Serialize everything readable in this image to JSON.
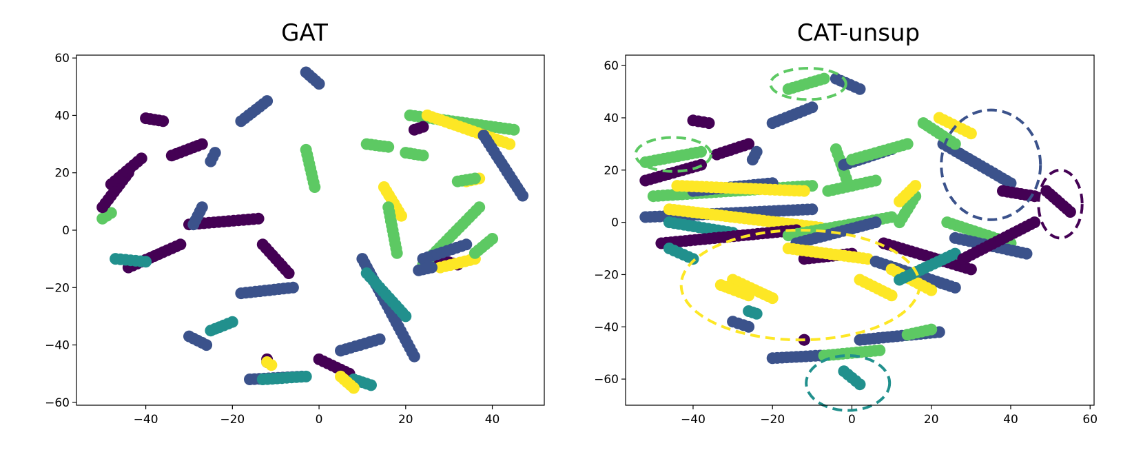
{
  "chart_data": [
    {
      "type": "scatter",
      "title": "GAT",
      "xlabel": "",
      "ylabel": "",
      "xlim": [
        -56,
        52
      ],
      "ylim": [
        -61,
        61
      ],
      "xticks": [
        -40,
        -20,
        0,
        20,
        40
      ],
      "yticks": [
        -60,
        -40,
        -20,
        0,
        20,
        40,
        60
      ],
      "grid": false,
      "legend": "none",
      "palette": [
        "#440154",
        "#3b528b",
        "#21908d",
        "#5dc963",
        "#fde725"
      ],
      "point_groups": [
        {
          "class": 0,
          "x": [
            -40,
            -36
          ],
          "y": [
            39,
            38
          ]
        },
        {
          "class": 3,
          "x": [
            -50,
            -48
          ],
          "y": [
            4,
            6
          ]
        },
        {
          "class": 0,
          "x": [
            -50,
            -44
          ],
          "y": [
            8,
            20
          ]
        },
        {
          "class": 0,
          "x": [
            -48,
            -41
          ],
          "y": [
            16,
            25
          ]
        },
        {
          "class": 0,
          "x": [
            -34,
            -27
          ],
          "y": [
            26,
            30
          ]
        },
        {
          "class": 1,
          "x": [
            -25,
            -24
          ],
          "y": [
            24,
            27
          ]
        },
        {
          "class": 1,
          "x": [
            -18,
            -12
          ],
          "y": [
            38,
            45
          ]
        },
        {
          "class": 1,
          "x": [
            -3,
            0
          ],
          "y": [
            55,
            51
          ]
        },
        {
          "class": 3,
          "x": [
            -3,
            -1
          ],
          "y": [
            28,
            15
          ]
        },
        {
          "class": 0,
          "x": [
            -44,
            -32
          ],
          "y": [
            -13,
            -5
          ]
        },
        {
          "class": 2,
          "x": [
            -47,
            -40
          ],
          "y": [
            -10,
            -11
          ]
        },
        {
          "class": 0,
          "x": [
            -30,
            -14
          ],
          "y": [
            2,
            4
          ]
        },
        {
          "class": 1,
          "x": [
            -29,
            -27
          ],
          "y": [
            2,
            8
          ]
        },
        {
          "class": 0,
          "x": [
            -13,
            -7
          ],
          "y": [
            -5,
            -15
          ]
        },
        {
          "class": 1,
          "x": [
            -18,
            -6
          ],
          "y": [
            -22,
            -20
          ]
        },
        {
          "class": 2,
          "x": [
            -25,
            -20
          ],
          "y": [
            -35,
            -32
          ]
        },
        {
          "class": 1,
          "x": [
            -30,
            -26
          ],
          "y": [
            -37,
            -40
          ]
        },
        {
          "class": 1,
          "x": [
            -16,
            -4
          ],
          "y": [
            -52,
            -51
          ]
        },
        {
          "class": 2,
          "x": [
            -13,
            -3
          ],
          "y": [
            -52,
            -51
          ]
        },
        {
          "class": 0,
          "x": [
            -12,
            -12
          ],
          "y": [
            -45,
            -46
          ]
        },
        {
          "class": 4,
          "x": [
            -12,
            -11
          ],
          "y": [
            -46,
            -47
          ]
        },
        {
          "class": 0,
          "x": [
            0,
            7
          ],
          "y": [
            -45,
            -50
          ]
        },
        {
          "class": 1,
          "x": [
            5,
            14
          ],
          "y": [
            -42,
            -38
          ]
        },
        {
          "class": 2,
          "x": [
            8,
            12
          ],
          "y": [
            -52,
            -54
          ]
        },
        {
          "class": 4,
          "x": [
            5,
            8
          ],
          "y": [
            -51,
            -55
          ]
        },
        {
          "class": 1,
          "x": [
            10,
            22
          ],
          "y": [
            -10,
            -44
          ]
        },
        {
          "class": 2,
          "x": [
            11,
            20
          ],
          "y": [
            -15,
            -30
          ]
        },
        {
          "class": 4,
          "x": [
            15,
            19
          ],
          "y": [
            15,
            5
          ]
        },
        {
          "class": 3,
          "x": [
            16,
            18
          ],
          "y": [
            8,
            -8
          ]
        },
        {
          "class": 3,
          "x": [
            11,
            16
          ],
          "y": [
            30,
            29
          ]
        },
        {
          "class": 3,
          "x": [
            20,
            24
          ],
          "y": [
            27,
            26
          ]
        },
        {
          "class": 3,
          "x": [
            21,
            45
          ],
          "y": [
            40,
            35
          ]
        },
        {
          "class": 4,
          "x": [
            25,
            44
          ],
          "y": [
            40,
            30
          ]
        },
        {
          "class": 1,
          "x": [
            38,
            47
          ],
          "y": [
            33,
            12
          ]
        },
        {
          "class": 4,
          "x": [
            34,
            37
          ],
          "y": [
            17,
            18
          ]
        },
        {
          "class": 3,
          "x": [
            32,
            36
          ],
          "y": [
            17,
            18
          ]
        },
        {
          "class": 0,
          "x": [
            27,
            32
          ],
          "y": [
            -10,
            -12
          ]
        },
        {
          "class": 3,
          "x": [
            24,
            37
          ],
          "y": [
            -12,
            8
          ]
        },
        {
          "class": 1,
          "x": [
            24,
            34
          ],
          "y": [
            -10,
            -5
          ]
        },
        {
          "class": 4,
          "x": [
            28,
            36
          ],
          "y": [
            -13,
            -10
          ]
        },
        {
          "class": 3,
          "x": [
            36,
            40
          ],
          "y": [
            -8,
            -3
          ]
        },
        {
          "class": 1,
          "x": [
            23,
            26
          ],
          "y": [
            -14,
            -13
          ]
        },
        {
          "class": 0,
          "x": [
            22,
            24
          ],
          "y": [
            35,
            36
          ]
        }
      ]
    },
    {
      "type": "scatter",
      "title": "CAT-unsup",
      "xlabel": "",
      "ylabel": "",
      "xlim": [
        -57,
        61
      ],
      "ylim": [
        -70,
        64
      ],
      "xticks": [
        -40,
        -20,
        0,
        20,
        40,
        60
      ],
      "yticks": [
        -60,
        -40,
        -20,
        0,
        20,
        40,
        60
      ],
      "grid": false,
      "legend": "none",
      "palette": [
        "#440154",
        "#3b528b",
        "#21908d",
        "#5dc963",
        "#fde725"
      ],
      "point_groups": [
        {
          "class": 3,
          "x": [
            -16,
            -7
          ],
          "y": [
            51,
            55
          ]
        },
        {
          "class": 1,
          "x": [
            -4,
            2
          ],
          "y": [
            55,
            51
          ]
        },
        {
          "class": 1,
          "x": [
            -20,
            -10
          ],
          "y": [
            38,
            44
          ]
        },
        {
          "class": 0,
          "x": [
            -40,
            -36
          ],
          "y": [
            39,
            38
          ]
        },
        {
          "class": 3,
          "x": [
            -52,
            -38
          ],
          "y": [
            23,
            27
          ]
        },
        {
          "class": 0,
          "x": [
            -34,
            -26
          ],
          "y": [
            26,
            30
          ]
        },
        {
          "class": 1,
          "x": [
            -25,
            -24
          ],
          "y": [
            24,
            27
          ]
        },
        {
          "class": 0,
          "x": [
            -52,
            -38
          ],
          "y": [
            16,
            22
          ]
        },
        {
          "class": 3,
          "x": [
            -4,
            -1
          ],
          "y": [
            28,
            15
          ]
        },
        {
          "class": 1,
          "x": [
            23,
            40
          ],
          "y": [
            30,
            15
          ]
        },
        {
          "class": 0,
          "x": [
            38,
            46
          ],
          "y": [
            12,
            10
          ]
        },
        {
          "class": 0,
          "x": [
            49,
            55
          ],
          "y": [
            12,
            4
          ]
        },
        {
          "class": 2,
          "x": [
            -2,
            2
          ],
          "y": [
            -57,
            -62
          ]
        },
        {
          "class": 1,
          "x": [
            -20,
            -8
          ],
          "y": [
            -52,
            -51
          ]
        },
        {
          "class": 3,
          "x": [
            -7,
            7
          ],
          "y": [
            -51,
            -49
          ]
        },
        {
          "class": 4,
          "x": [
            -30,
            -20
          ],
          "y": [
            -22,
            -29
          ]
        },
        {
          "class": 4,
          "x": [
            -33,
            -26
          ],
          "y": [
            -24,
            -28
          ]
        },
        {
          "class": 4,
          "x": [
            2,
            10
          ],
          "y": [
            -22,
            -28
          ]
        },
        {
          "class": 1,
          "x": [
            -30,
            -26
          ],
          "y": [
            -38,
            -40
          ]
        },
        {
          "class": 2,
          "x": [
            -26,
            -24
          ],
          "y": [
            -34,
            -35
          ]
        },
        {
          "class": 0,
          "x": [
            -12,
            -12
          ],
          "y": [
            -45,
            -45
          ]
        },
        {
          "class": 1,
          "x": [
            2,
            22
          ],
          "y": [
            -45,
            -42
          ]
        },
        {
          "class": 3,
          "x": [
            14,
            20
          ],
          "y": [
            -43,
            -41
          ]
        },
        {
          "class": 1,
          "x": [
            -52,
            -10
          ],
          "y": [
            2,
            5
          ]
        },
        {
          "class": 4,
          "x": [
            -46,
            -8
          ],
          "y": [
            5,
            -2
          ]
        },
        {
          "class": 3,
          "x": [
            -50,
            -10
          ],
          "y": [
            10,
            14
          ]
        },
        {
          "class": 2,
          "x": [
            -46,
            -30
          ],
          "y": [
            0,
            -4
          ]
        },
        {
          "class": 0,
          "x": [
            -48,
            -14
          ],
          "y": [
            -8,
            -3
          ]
        },
        {
          "class": 2,
          "x": [
            -46,
            -40
          ],
          "y": [
            -10,
            -14
          ]
        },
        {
          "class": 1,
          "x": [
            -40,
            -20
          ],
          "y": [
            12,
            15
          ]
        },
        {
          "class": 4,
          "x": [
            -44,
            -12
          ],
          "y": [
            14,
            12
          ]
        },
        {
          "class": 3,
          "x": [
            -16,
            10
          ],
          "y": [
            -5,
            2
          ]
        },
        {
          "class": 1,
          "x": [
            -14,
            6
          ],
          "y": [
            -8,
            0
          ]
        },
        {
          "class": 0,
          "x": [
            -12,
            0
          ],
          "y": [
            -14,
            -12
          ]
        },
        {
          "class": 4,
          "x": [
            -16,
            4
          ],
          "y": [
            -10,
            -14
          ]
        },
        {
          "class": 3,
          "x": [
            -6,
            6
          ],
          "y": [
            12,
            16
          ]
        },
        {
          "class": 1,
          "x": [
            -2,
            10
          ],
          "y": [
            22,
            28
          ]
        },
        {
          "class": 3,
          "x": [
            0,
            14
          ],
          "y": [
            24,
            30
          ]
        },
        {
          "class": 1,
          "x": [
            6,
            26
          ],
          "y": [
            -15,
            -25
          ]
        },
        {
          "class": 0,
          "x": [
            8,
            30
          ],
          "y": [
            -8,
            -18
          ]
        },
        {
          "class": 4,
          "x": [
            10,
            20
          ],
          "y": [
            -18,
            -26
          ]
        },
        {
          "class": 2,
          "x": [
            12,
            26
          ],
          "y": [
            -22,
            -12
          ]
        },
        {
          "class": 3,
          "x": [
            24,
            40
          ],
          "y": [
            0,
            -8
          ]
        },
        {
          "class": 1,
          "x": [
            26,
            44
          ],
          "y": [
            -6,
            -12
          ]
        },
        {
          "class": 0,
          "x": [
            28,
            46
          ],
          "y": [
            -14,
            0
          ]
        },
        {
          "class": 3,
          "x": [
            18,
            26
          ],
          "y": [
            38,
            30
          ]
        },
        {
          "class": 4,
          "x": [
            22,
            30
          ],
          "y": [
            40,
            34
          ]
        },
        {
          "class": 3,
          "x": [
            12,
            16
          ],
          "y": [
            0,
            10
          ]
        },
        {
          "class": 4,
          "x": [
            12,
            16
          ],
          "y": [
            8,
            14
          ]
        }
      ],
      "highlight_regions": [
        {
          "color": "#5dc963",
          "cx": -11,
          "cy": 53,
          "rx": 9.5,
          "ry": 6
        },
        {
          "color": "#5dc963",
          "cx": -45,
          "cy": 26,
          "rx": 9.5,
          "ry": 6.5
        },
        {
          "color": "#3b528b",
          "cx": 35,
          "cy": 22,
          "rx": 12.5,
          "ry": 21
        },
        {
          "color": "#440154",
          "cx": 52.5,
          "cy": 7,
          "rx": 5.5,
          "ry": 13
        },
        {
          "color": "#fde725",
          "cx": -13,
          "cy": -24,
          "rx": 30,
          "ry": 21
        },
        {
          "color": "#21908d",
          "cx": -1,
          "cy": -61.5,
          "rx": 10.5,
          "ry": 10.5
        }
      ]
    }
  ]
}
